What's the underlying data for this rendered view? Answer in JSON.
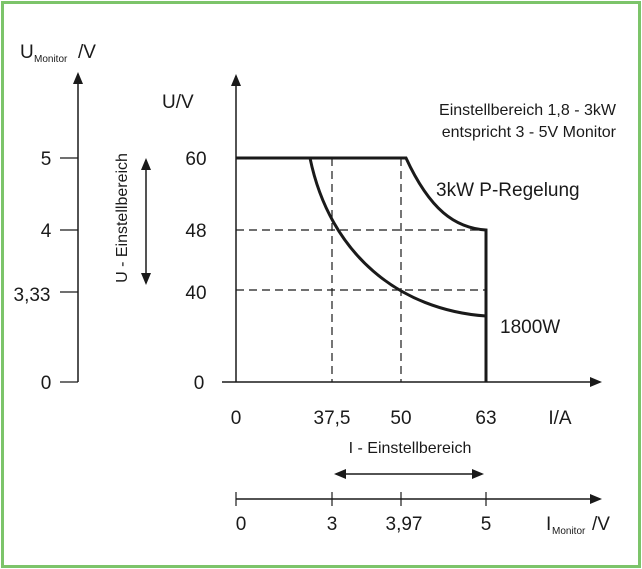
{
  "colors": {
    "frame": "#7cc46a",
    "ink": "#1a1a1a"
  },
  "left_axis": {
    "label_main": "U",
    "label_sub": "Monitor",
    "label_unit": "/V",
    "ticks": [
      {
        "value": 5,
        "label": "5"
      },
      {
        "value": 4,
        "label": "4"
      },
      {
        "value": 3.33,
        "label": "3,33"
      },
      {
        "value": 0,
        "label": "0"
      }
    ]
  },
  "u_range_label": "U - Einstellbereich",
  "main_chart": {
    "ylabel": "U/V",
    "xlabel": "I/A",
    "y_ticks": [
      "60",
      "48",
      "40",
      "0"
    ],
    "x_ticks": [
      "0",
      "37,5",
      "50",
      "63"
    ],
    "curve_labels": {
      "p_3kw": "3kW P-Regelung",
      "p_1800": "1800W"
    },
    "note_line1": "Einstellbereich 1,8 - 3kW",
    "note_line2": "entspricht 3 - 5V Monitor"
  },
  "i_range_label": "I - Einstellbereich",
  "bottom_axis": {
    "ticks": [
      "0",
      "3",
      "3,97",
      "5"
    ],
    "label_main": "I",
    "label_sub": "Monitor",
    "label_unit": "/V"
  },
  "chart_data": {
    "type": "line",
    "xlabel": "I/A",
    "ylabel": "U/V",
    "x_ticks": [
      0,
      37.5,
      50,
      63
    ],
    "y_ticks": [
      0,
      40,
      48,
      60
    ],
    "series": [
      {
        "name": "3kW P-Regelung",
        "points": [
          [
            0,
            60
          ],
          [
            50,
            60
          ],
          [
            63,
            48
          ],
          [
            63,
            0
          ]
        ]
      },
      {
        "name": "1800W",
        "points": [
          [
            30,
            60
          ],
          [
            37.5,
            48
          ],
          [
            45,
            40
          ],
          [
            63,
            28.6
          ]
        ]
      }
    ]
  }
}
